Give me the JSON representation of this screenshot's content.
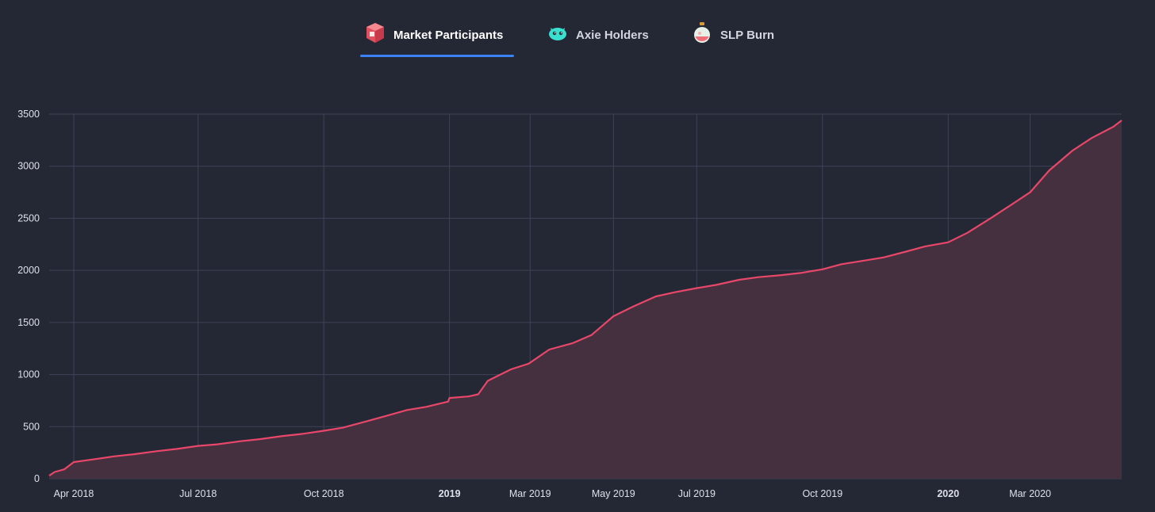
{
  "tabs": [
    {
      "label": "Market Participants",
      "icon": "box-icon",
      "active": true
    },
    {
      "label": "Axie Holders",
      "icon": "axie-icon",
      "active": false
    },
    {
      "label": "SLP Burn",
      "icon": "potion-icon",
      "active": false
    }
  ],
  "colors": {
    "background": "#242734",
    "grid": "#3f4356",
    "line": "#e8476a",
    "area": "#47303f",
    "tab_underline": "#3b82f6"
  },
  "chart_data": {
    "type": "area",
    "title": "",
    "xlabel": "",
    "ylabel": "",
    "ylim": [
      0,
      3500
    ],
    "xlim": [
      "2018-03-14",
      "2020-05-07"
    ],
    "y_ticks": [
      0,
      500,
      1000,
      1500,
      2000,
      2500,
      3000,
      3500
    ],
    "y_tick_labels": [
      "0",
      "500",
      "1000",
      "1500",
      "2000",
      "2500",
      "3000",
      "3500"
    ],
    "x_ticks": [
      {
        "date": "2018-04-01",
        "label": "Apr 2018",
        "bold": false
      },
      {
        "date": "2018-07-01",
        "label": "Jul 2018",
        "bold": false
      },
      {
        "date": "2018-10-01",
        "label": "Oct 2018",
        "bold": false
      },
      {
        "date": "2019-01-01",
        "label": "2019",
        "bold": true
      },
      {
        "date": "2019-03-01",
        "label": "Mar 2019",
        "bold": false
      },
      {
        "date": "2019-05-01",
        "label": "May 2019",
        "bold": false
      },
      {
        "date": "2019-07-01",
        "label": "Jul 2019",
        "bold": false
      },
      {
        "date": "2019-10-01",
        "label": "Oct 2019",
        "bold": false
      },
      {
        "date": "2020-01-01",
        "label": "2020",
        "bold": true
      },
      {
        "date": "2020-03-01",
        "label": "Mar 2020",
        "bold": false
      }
    ],
    "grid": true,
    "series": [
      {
        "x": [
          "2018-03-14",
          "2018-03-18",
          "2018-03-25",
          "2018-04-01",
          "2018-04-15",
          "2018-05-01",
          "2018-05-15",
          "2018-06-01",
          "2018-06-15",
          "2018-07-01",
          "2018-07-15",
          "2018-08-01",
          "2018-08-15",
          "2018-09-01",
          "2018-09-15",
          "2018-10-01",
          "2018-10-15",
          "2018-11-01",
          "2018-11-15",
          "2018-12-01",
          "2018-12-15",
          "2018-12-31",
          "2019-01-01",
          "2019-01-15",
          "2019-01-22",
          "2019-01-29",
          "2019-02-15",
          "2019-02-28",
          "2019-03-15",
          "2019-04-01",
          "2019-04-15",
          "2019-05-01",
          "2019-05-15",
          "2019-06-01",
          "2019-06-15",
          "2019-07-01",
          "2019-07-15",
          "2019-08-01",
          "2019-08-15",
          "2019-09-01",
          "2019-09-15",
          "2019-10-01",
          "2019-10-15",
          "2019-11-01",
          "2019-11-15",
          "2019-12-01",
          "2019-12-15",
          "2020-01-01",
          "2020-01-15",
          "2020-02-01",
          "2020-02-15",
          "2020-03-01",
          "2020-03-15",
          "2020-04-01",
          "2020-04-15",
          "2020-05-01",
          "2020-05-07"
        ],
        "y": [
          30,
          65,
          90,
          160,
          185,
          215,
          235,
          265,
          285,
          315,
          330,
          360,
          380,
          410,
          430,
          460,
          490,
          550,
          600,
          660,
          690,
          740,
          775,
          790,
          810,
          940,
          1050,
          1105,
          1240,
          1300,
          1380,
          1560,
          1650,
          1750,
          1790,
          1830,
          1860,
          1910,
          1935,
          1955,
          1975,
          2010,
          2060,
          2095,
          2125,
          2180,
          2230,
          2270,
          2360,
          2500,
          2620,
          2750,
          2960,
          3150,
          3270,
          3380,
          3440
        ]
      }
    ]
  }
}
